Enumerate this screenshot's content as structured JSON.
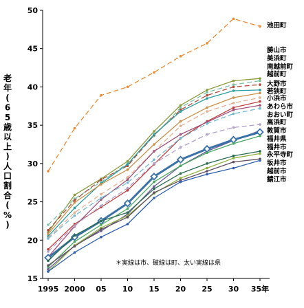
{
  "chart_data": {
    "type": "line",
    "title": "",
    "xlabel": "",
    "ylabel": "老年(65歳以上)人口割合(%)",
    "note": "＊実線は市、破線は町、太い実線は県",
    "x": [
      "1995",
      "2000",
      "05",
      "10",
      "15",
      "20",
      "25",
      "30",
      "35年"
    ],
    "ylim": [
      15,
      50
    ],
    "yticks": [
      "15",
      "20",
      "25",
      "30",
      "35",
      "40",
      "45",
      "50"
    ],
    "grid": false,
    "series": [
      {
        "name": "池田町",
        "color": "#f08a30",
        "dash": "dash",
        "values": [
          29.0,
          34.6,
          38.9,
          40.0,
          41.9,
          44.0,
          45.7,
          48.9,
          47.9
        ]
      },
      {
        "name": "勝山市",
        "color": "#8c9b3a",
        "dash": "solid",
        "values": [
          21.0,
          25.9,
          28.0,
          30.3,
          34.2,
          37.6,
          39.6,
          40.8,
          41.1
        ]
      },
      {
        "name": "美浜町",
        "color": "#7cc0a8",
        "dash": "dash",
        "values": [
          22.0,
          25.4,
          27.6,
          30.0,
          33.6,
          37.3,
          39.3,
          40.3,
          40.8
        ]
      },
      {
        "name": "南越前町",
        "color": "#b04a3a",
        "dash": "dash",
        "values": [
          21.3,
          25.2,
          27.9,
          29.7,
          33.7,
          37.0,
          38.9,
          40.0,
          40.3
        ]
      },
      {
        "name": "越前町",
        "color": "#2a9da0",
        "dash": "solid",
        "values": [
          20.5,
          24.2,
          27.4,
          29.9,
          33.8,
          36.8,
          38.5,
          39.5,
          39.6
        ]
      },
      {
        "name": "大野市",
        "color": "#c8904a",
        "dash": "solid",
        "values": [
          20.8,
          24.9,
          27.3,
          29.2,
          32.5,
          35.5,
          37.3,
          38.6,
          39.2
        ]
      },
      {
        "name": "若狭町",
        "color": "#e0b090",
        "dash": "dash",
        "values": [
          20.3,
          23.6,
          26.0,
          28.2,
          31.6,
          34.9,
          36.8,
          37.9,
          38.6
        ]
      },
      {
        "name": "小浜市",
        "color": "#c04040",
        "dash": "solid",
        "values": [
          18.8,
          22.1,
          24.3,
          26.5,
          29.9,
          33.3,
          35.5,
          37.3,
          38.1
        ]
      },
      {
        "name": "あわら市",
        "color": "#a0507a",
        "dash": "solid",
        "values": [
          17.8,
          21.8,
          25.3,
          27.9,
          31.6,
          33.8,
          35.4,
          37.0,
          37.6
        ]
      },
      {
        "name": "おおい町",
        "color": "#70b8d0",
        "dash": "dash",
        "values": [
          20.2,
          23.2,
          25.5,
          27.5,
          30.5,
          33.3,
          35.2,
          36.5,
          37.2
        ]
      },
      {
        "name": "高浜町",
        "color": "#b0a0c8",
        "dash": "dash",
        "values": [
          18.5,
          21.9,
          24.5,
          26.8,
          30.0,
          32.1,
          33.8,
          34.7,
          35.1
        ]
      },
      {
        "name": "敦賀市",
        "color": "#6a5a9a",
        "dash": "solid",
        "values": [
          16.2,
          19.3,
          21.2,
          23.4,
          27.0,
          29.7,
          31.6,
          33.0,
          34.3
        ]
      },
      {
        "name": "福井県",
        "color": "#3a72a8",
        "dash": "bold",
        "values": [
          17.7,
          20.4,
          22.5,
          24.8,
          28.3,
          30.5,
          31.9,
          33.1,
          34.1
        ]
      },
      {
        "name": "福井市",
        "color": "#4aa860",
        "dash": "solid",
        "values": [
          16.5,
          19.8,
          22.0,
          24.1,
          27.6,
          29.7,
          31.4,
          32.6,
          33.6
        ]
      },
      {
        "name": "永平寺町",
        "color": "#2a6a50",
        "dash": "solid",
        "values": [
          17.3,
          20.6,
          22.5,
          23.6,
          26.7,
          28.7,
          30.0,
          31.0,
          31.6
        ]
      },
      {
        "name": "坂井市",
        "color": "#90b040",
        "dash": "solid",
        "values": [
          15.9,
          19.3,
          21.6,
          23.2,
          26.1,
          28.1,
          29.4,
          30.7,
          31.3
        ]
      },
      {
        "name": "越前市",
        "color": "#605060",
        "dash": "solid",
        "values": [
          16.7,
          19.2,
          21.4,
          23.0,
          26.2,
          27.8,
          29.0,
          30.2,
          30.6
        ]
      },
      {
        "name": "鯖江市",
        "color": "#3060b0",
        "dash": "solid",
        "values": [
          15.9,
          18.4,
          20.4,
          22.1,
          25.5,
          27.6,
          28.6,
          29.4,
          30.4
        ]
      }
    ]
  }
}
